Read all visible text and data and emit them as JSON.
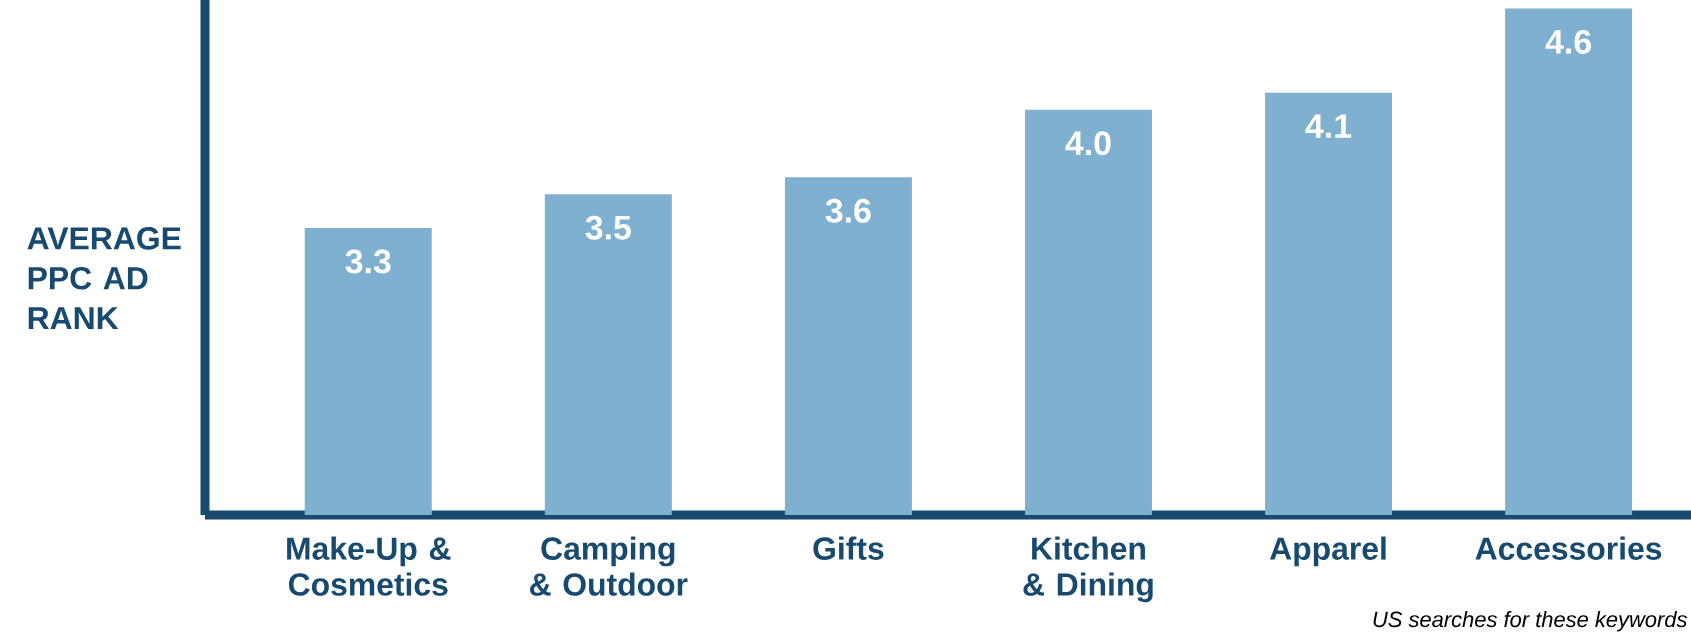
{
  "chart_data": {
    "type": "bar",
    "ylabel": "AVERAGE PPC AD RANK",
    "categories": [
      "Make-Up & Cosmetics",
      "Camping & Outdoor",
      "Gifts",
      "Kitchen & Dining",
      "Apparel",
      "Accessories"
    ],
    "values": [
      3.3,
      3.5,
      3.6,
      4.0,
      4.1,
      4.6
    ],
    "color": "#7fb0d0",
    "ylim": [
      1.6,
      4.65
    ],
    "value_labels": [
      "3.3",
      "3.5",
      "3.6",
      "4.0",
      "4.1",
      "4.6"
    ],
    "annotations": [
      "US searches for these keywords"
    ]
  }
}
